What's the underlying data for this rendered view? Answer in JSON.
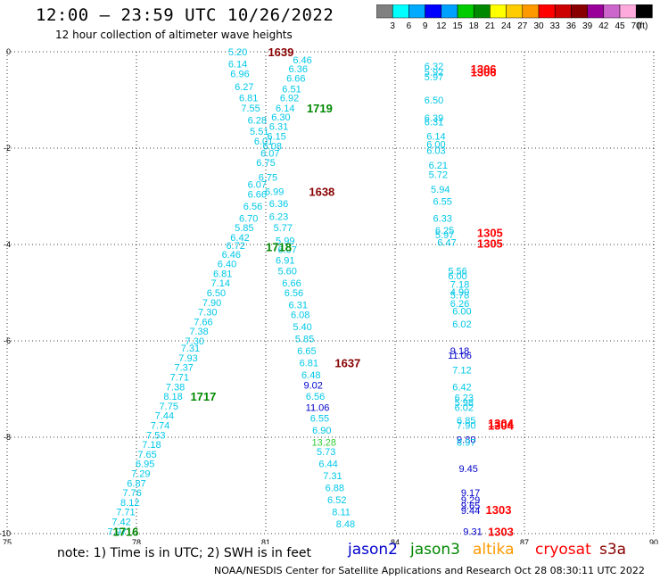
{
  "header": {
    "title": "12:00 – 23:59 UTC 10/26/2022",
    "subtitle": "12 hour collection of altimeter wave heights"
  },
  "scale": {
    "colors": [
      "#808080",
      "#00ffff",
      "#00aaff",
      "#0000ff",
      "#00a0ff",
      "#00cc00",
      "#008800",
      "#ffff00",
      "#ffcc00",
      "#ff9900",
      "#ff0000",
      "#cc0000",
      "#880000",
      "#990099",
      "#cc66cc",
      "#ffaadd",
      "#000000"
    ],
    "labels": [
      "3",
      "6",
      "9",
      "12",
      "15",
      "18",
      "21",
      "24",
      "27",
      "30",
      "33",
      "36",
      "39",
      "42",
      "45",
      "70"
    ],
    "unit": "(ft)"
  },
  "footer": {
    "note": "note: 1) Time is in UTC; 2) SWH is in feet",
    "satellites": [
      {
        "name": "jason2",
        "color": "#0000cc"
      },
      {
        "name": "jason3",
        "color": "#008800"
      },
      {
        "name": "altika",
        "color": "#ff9900"
      },
      {
        "name": "cryosat",
        "color": "#ff0000"
      },
      {
        "name": "s3a",
        "color": "#880000"
      }
    ],
    "credit": "NOAA/NESDIS Center for Satellite Applications and Research    Oct 28 08:30:11 UTC 2022"
  },
  "chart_data": {
    "type": "scatter",
    "title": "12:00 – 23:59 UTC 10/26/2022",
    "subtitle": "12 hour collection of altimeter wave heights",
    "xlabel": "",
    "ylabel": "",
    "xlim": [
      75,
      90
    ],
    "ylim": [
      -10,
      0
    ],
    "x_ticks": [
      "75",
      "78",
      "81",
      "84",
      "87",
      "90"
    ],
    "y_ticks": [
      "0",
      "-2",
      "-4",
      "-6",
      "-8",
      "-10"
    ],
    "grid": true,
    "legend": "bottom",
    "unit": "ft",
    "points": [
      {
        "x": 80.35,
        "y": 0.0,
        "v": "5.20",
        "c": "#00c8e8"
      },
      {
        "x": 81.85,
        "y": -0.17,
        "v": "6.46",
        "c": "#00c8e8"
      },
      {
        "x": 80.35,
        "y": -0.25,
        "v": "6.14",
        "c": "#00c8e8"
      },
      {
        "x": 81.75,
        "y": -0.35,
        "v": "6.36",
        "c": "#00c8e8"
      },
      {
        "x": 80.4,
        "y": -0.45,
        "v": "6.96",
        "c": "#00c8e8"
      },
      {
        "x": 81.7,
        "y": -0.55,
        "v": "6.66",
        "c": "#00c8e8"
      },
      {
        "x": 80.5,
        "y": -0.72,
        "v": "6.27",
        "c": "#00c8e8"
      },
      {
        "x": 81.6,
        "y": -0.77,
        "v": "6.51",
        "c": "#00c8e8"
      },
      {
        "x": 80.6,
        "y": -0.95,
        "v": "6.81",
        "c": "#00c8e8"
      },
      {
        "x": 81.55,
        "y": -0.95,
        "v": "6.92",
        "c": "#00c8e8"
      },
      {
        "x": 80.65,
        "y": -1.17,
        "v": "7.55",
        "c": "#00c8e8"
      },
      {
        "x": 81.45,
        "y": -1.17,
        "v": "6.14",
        "c": "#00c8e8"
      },
      {
        "x": 81.35,
        "y": -1.35,
        "v": "6.30",
        "c": "#00c8e8"
      },
      {
        "x": 80.8,
        "y": -1.42,
        "v": "6.28",
        "c": "#00c8e8"
      },
      {
        "x": 81.3,
        "y": -1.55,
        "v": "6.31",
        "c": "#00c8e8"
      },
      {
        "x": 80.85,
        "y": -1.65,
        "v": "5.51",
        "c": "#00c8e8"
      },
      {
        "x": 81.25,
        "y": -1.75,
        "v": "6.15",
        "c": "#00c8e8"
      },
      {
        "x": 80.95,
        "y": -1.85,
        "v": "6.01",
        "c": "#00c8e8"
      },
      {
        "x": 81.15,
        "y": -1.95,
        "v": "6.08",
        "c": "#00c8e8"
      },
      {
        "x": 81.1,
        "y": -2.1,
        "v": "6.07",
        "c": "#00c8e8"
      },
      {
        "x": 81.0,
        "y": -2.3,
        "v": "6.75",
        "c": "#00c8e8"
      },
      {
        "x": 81.05,
        "y": -2.6,
        "v": "6.75",
        "c": "#00c8e8"
      },
      {
        "x": 80.8,
        "y": -2.75,
        "v": "6.07",
        "c": "#00c8e8"
      },
      {
        "x": 81.2,
        "y": -2.9,
        "v": "6.99",
        "c": "#00c8e8"
      },
      {
        "x": 80.8,
        "y": -2.95,
        "v": "6.66",
        "c": "#00c8e8"
      },
      {
        "x": 81.3,
        "y": -3.15,
        "v": "6.36",
        "c": "#00c8e8"
      },
      {
        "x": 80.7,
        "y": -3.2,
        "v": "6.56",
        "c": "#00c8e8"
      },
      {
        "x": 81.3,
        "y": -3.42,
        "v": "6.23",
        "c": "#00c8e8"
      },
      {
        "x": 80.6,
        "y": -3.45,
        "v": "6.70",
        "c": "#00c8e8"
      },
      {
        "x": 80.5,
        "y": -3.65,
        "v": "5.85",
        "c": "#00c8e8"
      },
      {
        "x": 81.4,
        "y": -3.65,
        "v": "5.77",
        "c": "#00c8e8"
      },
      {
        "x": 80.4,
        "y": -3.85,
        "v": "6.42",
        "c": "#00c8e8"
      },
      {
        "x": 81.45,
        "y": -3.92,
        "v": "5.99",
        "c": "#00c8e8"
      },
      {
        "x": 80.3,
        "y": -4.02,
        "v": "6.72",
        "c": "#00c8e8"
      },
      {
        "x": 81.5,
        "y": -4.1,
        "v": "6.07",
        "c": "#00c8e8"
      },
      {
        "x": 80.2,
        "y": -4.2,
        "v": "6.46",
        "c": "#00c8e8"
      },
      {
        "x": 80.1,
        "y": -4.4,
        "v": "6.40",
        "c": "#00c8e8"
      },
      {
        "x": 81.45,
        "y": -4.32,
        "v": "6.91",
        "c": "#00c8e8"
      },
      {
        "x": 80.0,
        "y": -4.6,
        "v": "6.81",
        "c": "#00c8e8"
      },
      {
        "x": 81.5,
        "y": -4.55,
        "v": "5.60",
        "c": "#00c8e8"
      },
      {
        "x": 79.95,
        "y": -4.8,
        "v": "7.14",
        "c": "#00c8e8"
      },
      {
        "x": 81.6,
        "y": -4.8,
        "v": "6.66",
        "c": "#00c8e8"
      },
      {
        "x": 79.85,
        "y": -5.0,
        "v": "6.50",
        "c": "#00c8e8"
      },
      {
        "x": 81.65,
        "y": -5.0,
        "v": "6.56",
        "c": "#00c8e8"
      },
      {
        "x": 79.75,
        "y": -5.2,
        "v": "7.90",
        "c": "#00c8e8"
      },
      {
        "x": 81.75,
        "y": -5.25,
        "v": "6.31",
        "c": "#00c8e8"
      },
      {
        "x": 79.65,
        "y": -5.4,
        "v": "7.30",
        "c": "#00c8e8"
      },
      {
        "x": 81.8,
        "y": -5.45,
        "v": "6.08",
        "c": "#00c8e8"
      },
      {
        "x": 79.55,
        "y": -5.6,
        "v": "7.66",
        "c": "#00c8e8"
      },
      {
        "x": 81.85,
        "y": -5.7,
        "v": "5.40",
        "c": "#00c8e8"
      },
      {
        "x": 79.45,
        "y": -5.8,
        "v": "7.38",
        "c": "#00c8e8"
      },
      {
        "x": 81.9,
        "y": -5.95,
        "v": "5.85",
        "c": "#00c8e8"
      },
      {
        "x": 79.35,
        "y": -6.0,
        "v": "7.30",
        "c": "#00c8e8"
      },
      {
        "x": 79.25,
        "y": -6.15,
        "v": "7.31",
        "c": "#00c8e8"
      },
      {
        "x": 81.95,
        "y": -6.2,
        "v": "6.65",
        "c": "#00c8e8"
      },
      {
        "x": 79.2,
        "y": -6.35,
        "v": "7.93",
        "c": "#00c8e8"
      },
      {
        "x": 82.0,
        "y": -6.45,
        "v": "6.81",
        "c": "#00c8e8"
      },
      {
        "x": 79.1,
        "y": -6.55,
        "v": "7.37",
        "c": "#00c8e8"
      },
      {
        "x": 82.05,
        "y": -6.7,
        "v": "6.48",
        "c": "#00c8e8"
      },
      {
        "x": 79.0,
        "y": -6.75,
        "v": "7.71",
        "c": "#00c8e8"
      },
      {
        "x": 82.1,
        "y": -6.92,
        "v": "9.02",
        "c": "#0000cc"
      },
      {
        "x": 78.9,
        "y": -6.95,
        "v": "7.38",
        "c": "#00c8e8"
      },
      {
        "x": 82.15,
        "y": -7.15,
        "v": "6.56",
        "c": "#00c8e8"
      },
      {
        "x": 78.85,
        "y": -7.15,
        "v": "8.18",
        "c": "#00c8e8"
      },
      {
        "x": 78.75,
        "y": -7.35,
        "v": "7.75",
        "c": "#00c8e8"
      },
      {
        "x": 82.2,
        "y": -7.38,
        "v": "11.06",
        "c": "#0000cc"
      },
      {
        "x": 78.65,
        "y": -7.55,
        "v": "7.44",
        "c": "#00c8e8"
      },
      {
        "x": 82.25,
        "y": -7.6,
        "v": "6.55",
        "c": "#00c8e8"
      },
      {
        "x": 78.55,
        "y": -7.75,
        "v": "7.74",
        "c": "#00c8e8"
      },
      {
        "x": 82.3,
        "y": -7.85,
        "v": "6.90",
        "c": "#00c8e8"
      },
      {
        "x": 78.45,
        "y": -7.95,
        "v": "7.53",
        "c": "#00c8e8"
      },
      {
        "x": 78.35,
        "y": -8.15,
        "v": "7.18",
        "c": "#00c8e8"
      },
      {
        "x": 82.35,
        "y": -8.1,
        "v": "13.28",
        "c": "#33cc33"
      },
      {
        "x": 78.25,
        "y": -8.35,
        "v": "7.65",
        "c": "#00c8e8"
      },
      {
        "x": 82.4,
        "y": -8.3,
        "v": "5.73",
        "c": "#00c8e8"
      },
      {
        "x": 78.2,
        "y": -8.55,
        "v": "6.95",
        "c": "#00c8e8"
      },
      {
        "x": 82.45,
        "y": -8.55,
        "v": "6.44",
        "c": "#00c8e8"
      },
      {
        "x": 78.1,
        "y": -8.75,
        "v": "7.29",
        "c": "#00c8e8"
      },
      {
        "x": 82.55,
        "y": -8.8,
        "v": "7.31",
        "c": "#00c8e8"
      },
      {
        "x": 78.0,
        "y": -8.95,
        "v": "6.87",
        "c": "#00c8e8"
      },
      {
        "x": 82.6,
        "y": -9.05,
        "v": "6.88",
        "c": "#00c8e8"
      },
      {
        "x": 77.9,
        "y": -9.15,
        "v": "7.76",
        "c": "#00c8e8"
      },
      {
        "x": 82.65,
        "y": -9.3,
        "v": "6.52",
        "c": "#00c8e8"
      },
      {
        "x": 77.85,
        "y": -9.35,
        "v": "8.12",
        "c": "#00c8e8"
      },
      {
        "x": 82.75,
        "y": -9.55,
        "v": "8.11",
        "c": "#00c8e8"
      },
      {
        "x": 77.75,
        "y": -9.55,
        "v": "7.71",
        "c": "#00c8e8"
      },
      {
        "x": 82.85,
        "y": -9.8,
        "v": "8.48",
        "c": "#00c8e8"
      },
      {
        "x": 77.65,
        "y": -9.75,
        "v": "7.42",
        "c": "#00c8e8"
      },
      {
        "x": 77.55,
        "y": -9.95,
        "v": "7.97",
        "c": "#00c8e8"
      },
      {
        "x": 84.9,
        "y": -0.3,
        "v": "6.32",
        "c": "#00c8e8"
      },
      {
        "x": 84.9,
        "y": -0.42,
        "v": "5.92",
        "c": "#00c8e8"
      },
      {
        "x": 84.9,
        "y": -0.52,
        "v": "5.97",
        "c": "#00c8e8"
      },
      {
        "x": 84.9,
        "y": -1.0,
        "v": "6.50",
        "c": "#00c8e8"
      },
      {
        "x": 84.9,
        "y": -1.37,
        "v": "6.39",
        "c": "#00c8e8"
      },
      {
        "x": 84.9,
        "y": -1.45,
        "v": "6.31",
        "c": "#00c8e8"
      },
      {
        "x": 84.95,
        "y": -1.75,
        "v": "6.14",
        "c": "#00c8e8"
      },
      {
        "x": 84.95,
        "y": -1.92,
        "v": "6.00",
        "c": "#00c8e8"
      },
      {
        "x": 84.95,
        "y": -2.05,
        "v": "6.03",
        "c": "#00c8e8"
      },
      {
        "x": 85.0,
        "y": -2.35,
        "v": "6.21",
        "c": "#00c8e8"
      },
      {
        "x": 85.0,
        "y": -2.55,
        "v": "5.72",
        "c": "#00c8e8"
      },
      {
        "x": 85.05,
        "y": -2.85,
        "v": "5.94",
        "c": "#00c8e8"
      },
      {
        "x": 85.1,
        "y": -3.1,
        "v": "6.55",
        "c": "#00c8e8"
      },
      {
        "x": 85.1,
        "y": -3.45,
        "v": "6.33",
        "c": "#00c8e8"
      },
      {
        "x": 85.15,
        "y": -3.7,
        "v": "6.25",
        "c": "#00c8e8"
      },
      {
        "x": 85.15,
        "y": -3.8,
        "v": "5.97",
        "c": "#00c8e8"
      },
      {
        "x": 85.2,
        "y": -3.95,
        "v": "6.47",
        "c": "#00c8e8"
      },
      {
        "x": 85.45,
        "y": -4.55,
        "v": "5.56",
        "c": "#00c8e8"
      },
      {
        "x": 85.45,
        "y": -4.65,
        "v": "6.00",
        "c": "#00c8e8"
      },
      {
        "x": 85.5,
        "y": -4.82,
        "v": "7.18",
        "c": "#00c8e8"
      },
      {
        "x": 85.5,
        "y": -4.98,
        "v": "4.90",
        "c": "#00c8e8"
      },
      {
        "x": 85.5,
        "y": -5.05,
        "v": "5.78",
        "c": "#00c8e8"
      },
      {
        "x": 85.5,
        "y": -5.22,
        "v": "6.26",
        "c": "#00c8e8"
      },
      {
        "x": 85.55,
        "y": -5.38,
        "v": "6.00",
        "c": "#00c8e8"
      },
      {
        "x": 85.55,
        "y": -5.65,
        "v": "6.02",
        "c": "#00c8e8"
      },
      {
        "x": 85.5,
        "y": -6.2,
        "v": "9.18",
        "c": "#0000cc"
      },
      {
        "x": 85.5,
        "y": -6.3,
        "v": "11.06",
        "c": "#0000cc"
      },
      {
        "x": 85.55,
        "y": -6.6,
        "v": "7.12",
        "c": "#00c8e8"
      },
      {
        "x": 85.55,
        "y": -6.95,
        "v": "6.42",
        "c": "#00c8e8"
      },
      {
        "x": 85.6,
        "y": -7.18,
        "v": "6.23",
        "c": "#00c8e8"
      },
      {
        "x": 85.6,
        "y": -7.28,
        "v": "5.98",
        "c": "#00c8e8"
      },
      {
        "x": 85.6,
        "y": -7.38,
        "v": "6.02",
        "c": "#00c8e8"
      },
      {
        "x": 85.65,
        "y": -7.65,
        "v": "6.85",
        "c": "#00c8e8"
      },
      {
        "x": 85.65,
        "y": -7.75,
        "v": "7.90",
        "c": "#00c8e8"
      },
      {
        "x": 85.65,
        "y": -8.05,
        "v": "9.80",
        "c": "#0000cc"
      },
      {
        "x": 85.65,
        "y": -8.1,
        "v": "8.97",
        "c": "#00c8e8"
      },
      {
        "x": 85.7,
        "y": -8.65,
        "v": "9.45",
        "c": "#0000cc"
      },
      {
        "x": 85.75,
        "y": -9.15,
        "v": "9.17",
        "c": "#0000cc"
      },
      {
        "x": 85.75,
        "y": -9.3,
        "v": "9.29",
        "c": "#0000cc"
      },
      {
        "x": 85.75,
        "y": -9.42,
        "v": "9.65",
        "c": "#0000cc"
      },
      {
        "x": 85.75,
        "y": -9.52,
        "v": "9.44",
        "c": "#0000cc"
      },
      {
        "x": 85.8,
        "y": -9.95,
        "v": "9.31",
        "c": "#0000cc"
      }
    ],
    "track_labels": [
      {
        "x": 81.35,
        "y": 0.0,
        "text": "1639",
        "c": "#880000"
      },
      {
        "x": 82.25,
        "y": -1.17,
        "text": "1719",
        "c": "#008800"
      },
      {
        "x": 82.3,
        "y": -2.9,
        "text": "1638",
        "c": "#880000"
      },
      {
        "x": 81.3,
        "y": -4.05,
        "text": "1718",
        "c": "#008800"
      },
      {
        "x": 82.9,
        "y": -6.45,
        "text": "1637",
        "c": "#880000"
      },
      {
        "x": 79.55,
        "y": -7.15,
        "text": "1717",
        "c": "#008800"
      },
      {
        "x": 77.75,
        "y": -9.95,
        "text": "1716",
        "c": "#008800"
      },
      {
        "x": 86.05,
        "y": -0.35,
        "text": "1306",
        "c": "#ff0000"
      },
      {
        "x": 86.05,
        "y": -0.42,
        "text": "1306",
        "c": "#ff0000"
      },
      {
        "x": 86.2,
        "y": -3.75,
        "text": "1305",
        "c": "#ff0000"
      },
      {
        "x": 86.2,
        "y": -3.97,
        "text": "1305",
        "c": "#ff0000"
      },
      {
        "x": 86.45,
        "y": -7.7,
        "text": "1304",
        "c": "#ff0000"
      },
      {
        "x": 86.45,
        "y": -7.75,
        "text": "1304",
        "c": "#ff0000"
      },
      {
        "x": 86.4,
        "y": -9.5,
        "text": "1303",
        "c": "#ff0000"
      },
      {
        "x": 86.45,
        "y": -9.95,
        "text": "1303",
        "c": "#ff0000"
      }
    ]
  }
}
